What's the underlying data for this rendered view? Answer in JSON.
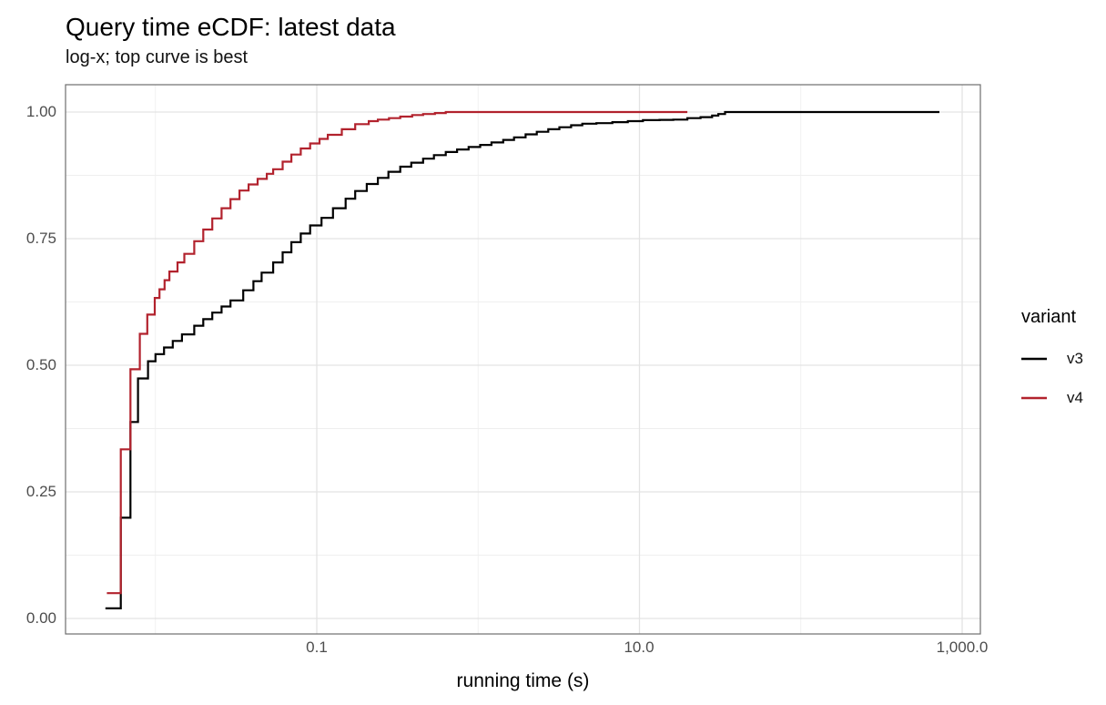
{
  "chart_data": {
    "type": "line",
    "variant": "ecdf_step",
    "title": "Query time eCDF: latest data",
    "subtitle": "log-x; top curve is best",
    "xlabel": "running time (s)",
    "ylabel": "",
    "x_scale": "log10",
    "xlim_seconds": [
      0.0028,
      1280
    ],
    "ylim": [
      0,
      1
    ],
    "grid": true,
    "x_major_ticks": [
      {
        "value": 0.1,
        "label": "0.1"
      },
      {
        "value": 10,
        "label": "10.0"
      },
      {
        "value": 1000,
        "label": "1,000.0"
      }
    ],
    "x_minor_gridlines": [
      0.01,
      1,
      100
    ],
    "y_major_ticks": [
      {
        "value": 1.0,
        "label": "1.00"
      },
      {
        "value": 0.75,
        "label": "0.75"
      },
      {
        "value": 0.5,
        "label": "0.50"
      },
      {
        "value": 0.25,
        "label": "0.25"
      },
      {
        "value": 0.0,
        "label": "0.00"
      }
    ],
    "y_minor_gridlines": [
      0.125,
      0.375,
      0.625,
      0.875
    ],
    "legend": {
      "title": "variant",
      "position": "right"
    },
    "series": [
      {
        "name": "v3",
        "color": "#000000",
        "points": [
          [
            0.0049,
            0.02
          ],
          [
            0.0061,
            0.199
          ],
          [
            0.007,
            0.388
          ],
          [
            0.0078,
            0.474
          ],
          [
            0.009,
            0.508
          ],
          [
            0.01,
            0.522
          ],
          [
            0.0113,
            0.535
          ],
          [
            0.0128,
            0.548
          ],
          [
            0.0146,
            0.561
          ],
          [
            0.0174,
            0.578
          ],
          [
            0.0198,
            0.591
          ],
          [
            0.0225,
            0.604
          ],
          [
            0.0257,
            0.616
          ],
          [
            0.0292,
            0.628
          ],
          [
            0.035,
            0.648
          ],
          [
            0.0405,
            0.666
          ],
          [
            0.0455,
            0.683
          ],
          [
            0.0537,
            0.703
          ],
          [
            0.0614,
            0.723
          ],
          [
            0.0696,
            0.743
          ],
          [
            0.0796,
            0.76
          ],
          [
            0.091,
            0.776
          ],
          [
            0.107,
            0.791
          ],
          [
            0.126,
            0.81
          ],
          [
            0.151,
            0.829
          ],
          [
            0.173,
            0.844
          ],
          [
            0.204,
            0.858
          ],
          [
            0.239,
            0.87
          ],
          [
            0.278,
            0.882
          ],
          [
            0.329,
            0.892
          ],
          [
            0.385,
            0.9
          ],
          [
            0.456,
            0.908
          ],
          [
            0.532,
            0.915
          ],
          [
            0.63,
            0.921
          ],
          [
            0.74,
            0.926
          ],
          [
            0.873,
            0.931
          ],
          [
            1.03,
            0.935
          ],
          [
            1.21,
            0.94
          ],
          [
            1.43,
            0.945
          ],
          [
            1.67,
            0.95
          ],
          [
            1.97,
            0.956
          ],
          [
            2.31,
            0.961
          ],
          [
            2.72,
            0.966
          ],
          [
            3.19,
            0.97
          ],
          [
            3.77,
            0.974
          ],
          [
            4.42,
            0.977
          ],
          [
            5.41,
            0.978
          ],
          [
            6.79,
            0.98
          ],
          [
            8.47,
            0.982
          ],
          [
            10.5,
            0.984
          ],
          [
            13.3,
            0.9845
          ],
          [
            16.2,
            0.985
          ],
          [
            19.8,
            0.988
          ],
          [
            23.9,
            0.99
          ],
          [
            28.2,
            0.993
          ],
          [
            30.8,
            0.996
          ],
          [
            33.9,
            1.0
          ],
          [
            723,
            1.0
          ]
        ]
      },
      {
        "name": "v4",
        "color": "#B2222D",
        "points": [
          [
            0.005,
            0.05
          ],
          [
            0.0061,
            0.334
          ],
          [
            0.007,
            0.492
          ],
          [
            0.008,
            0.562
          ],
          [
            0.0089,
            0.6
          ],
          [
            0.0099,
            0.633
          ],
          [
            0.0106,
            0.65
          ],
          [
            0.0114,
            0.668
          ],
          [
            0.0122,
            0.685
          ],
          [
            0.0137,
            0.703
          ],
          [
            0.0151,
            0.72
          ],
          [
            0.0174,
            0.745
          ],
          [
            0.0198,
            0.768
          ],
          [
            0.0225,
            0.79
          ],
          [
            0.0257,
            0.81
          ],
          [
            0.0292,
            0.828
          ],
          [
            0.0332,
            0.845
          ],
          [
            0.0378,
            0.857
          ],
          [
            0.043,
            0.868
          ],
          [
            0.049,
            0.878
          ],
          [
            0.0537,
            0.887
          ],
          [
            0.0614,
            0.902
          ],
          [
            0.0696,
            0.916
          ],
          [
            0.0796,
            0.928
          ],
          [
            0.091,
            0.938
          ],
          [
            0.104,
            0.947
          ],
          [
            0.117,
            0.955
          ],
          [
            0.143,
            0.966
          ],
          [
            0.173,
            0.976
          ],
          [
            0.21,
            0.982
          ],
          [
            0.239,
            0.985
          ],
          [
            0.28,
            0.988
          ],
          [
            0.329,
            0.991
          ],
          [
            0.39,
            0.994
          ],
          [
            0.456,
            0.996
          ],
          [
            0.54,
            0.998
          ],
          [
            0.63,
            1.0
          ],
          [
            19.8,
            1.0
          ]
        ]
      }
    ]
  },
  "colors": {
    "background": "#FFFFFF",
    "grid_major": "#E3E3E3",
    "grid_minor": "#EFEFEF",
    "panel_border": "#6F6F6F",
    "tick_label": "#4D4D4D",
    "text": "#000000"
  }
}
